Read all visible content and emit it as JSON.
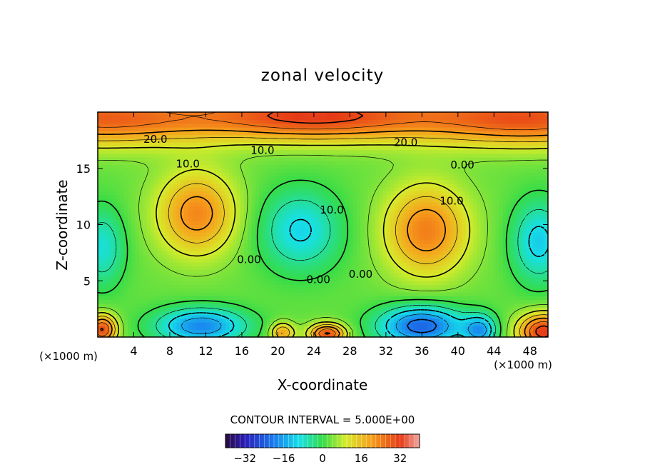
{
  "chart_data": {
    "type": "heatmap",
    "title": "zonal velocity",
    "xlabel": "X-coordinate",
    "ylabel": "Z-coordinate",
    "x_unit": "(×1000 m)",
    "z_unit": "(×1000 m)",
    "xlim": [
      0,
      50
    ],
    "ylim": [
      0,
      20
    ],
    "x_ticks": [
      4,
      8,
      12,
      16,
      20,
      24,
      28,
      32,
      36,
      40,
      44,
      48
    ],
    "y_ticks": [
      5,
      10,
      15
    ],
    "contour_interval_text": "CONTOUR INTERVAL = 5.000E+00",
    "colorbar": {
      "range": [
        -40,
        40
      ],
      "ticks": [
        -32,
        -16,
        0,
        16,
        32
      ],
      "ticks_text": [
        "−32",
        "−16",
        "0",
        "16",
        "32"
      ]
    },
    "contour_labels": [
      {
        "text": "20.0",
        "x": 6.4,
        "z": 17.6
      },
      {
        "text": "20.0",
        "x": 34.2,
        "z": 17.3
      },
      {
        "text": "10.0",
        "x": 18.3,
        "z": 16.6
      },
      {
        "text": "10.0",
        "x": 10.0,
        "z": 15.4
      },
      {
        "text": "0.00",
        "x": 40.5,
        "z": 15.3
      },
      {
        "text": "10.0",
        "x": 39.3,
        "z": 12.1
      },
      {
        "text": "10.0",
        "x": 26.0,
        "z": 11.3
      },
      {
        "text": "0.00",
        "x": 16.8,
        "z": 6.9
      },
      {
        "text": "0.00",
        "x": 24.5,
        "z": 5.1
      },
      {
        "text": "0.00",
        "x": 29.2,
        "z": 5.6
      }
    ],
    "field_features": [
      {
        "x": 0,
        "z": 19.5,
        "v": 24,
        "sx": 13,
        "sz": 2.4
      },
      {
        "x": 24,
        "z": 19.7,
        "v": 28,
        "sx": 13,
        "sz": 2.2
      },
      {
        "x": 48,
        "z": 19.5,
        "v": 26,
        "sx": 13,
        "sz": 2.4
      },
      {
        "x": 11,
        "z": 11,
        "v": 20,
        "sx": 4.4,
        "sz": 3.7
      },
      {
        "x": 36.5,
        "z": 9.5,
        "v": 21,
        "sx": 4.6,
        "sz": 4.0
      },
      {
        "x": 22.5,
        "z": 9.5,
        "v": -14,
        "sx": 4.5,
        "sz": 3.6
      },
      {
        "x": 49,
        "z": 8.5,
        "v": -15,
        "sx": 3.0,
        "sz": 3.6
      },
      {
        "x": 0.5,
        "z": 8,
        "v": -12,
        "sx": 2.5,
        "sz": 3.5
      },
      {
        "x": 11.5,
        "z": 1,
        "v": -22,
        "sx": 5,
        "sz": 1.6
      },
      {
        "x": 36,
        "z": 1,
        "v": -26,
        "sx": 4.8,
        "sz": 1.8
      },
      {
        "x": 25.5,
        "z": 0.3,
        "v": 28,
        "sx": 2.0,
        "sz": 0.9
      },
      {
        "x": 20.5,
        "z": 0.4,
        "v": 18,
        "sx": 1.3,
        "sz": 0.9
      },
      {
        "x": 49.5,
        "z": 0.5,
        "v": 30,
        "sx": 2.8,
        "sz": 1.6
      },
      {
        "x": 0.5,
        "z": 0.7,
        "v": 28,
        "sx": 1.6,
        "sz": 1.3
      },
      {
        "x": 42.5,
        "z": 0.6,
        "v": -18,
        "sx": 1.8,
        "sz": 1.4
      }
    ]
  }
}
